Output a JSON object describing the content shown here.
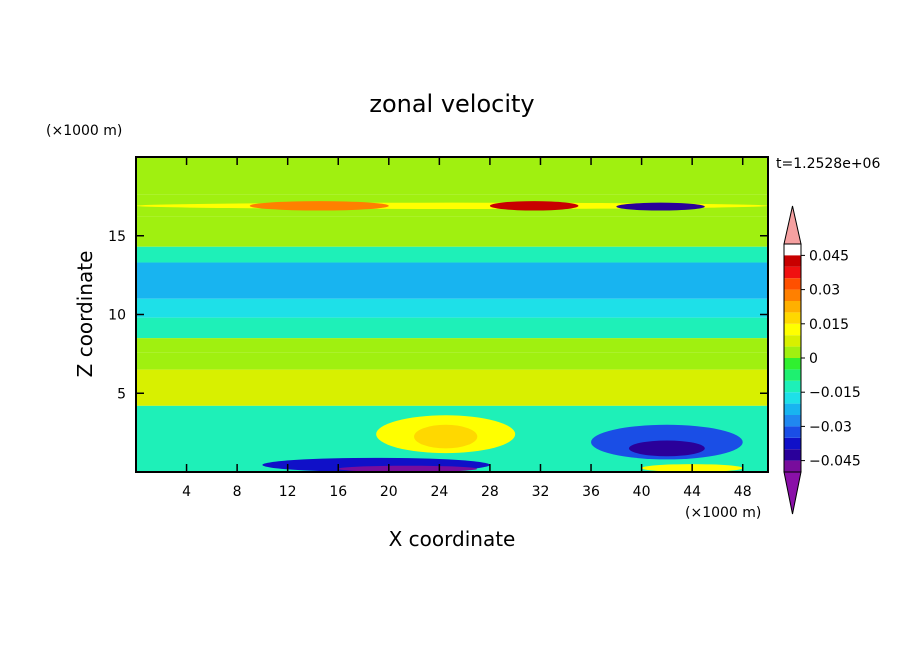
{
  "chart_data": {
    "type": "heatmap",
    "title": "zonal velocity",
    "xlabel": "X coordinate",
    "ylabel": "Z coordinate",
    "x_unit_label": "(×1000 m)",
    "y_unit_label": "(×1000 m)",
    "time_label": "t=1.2528e+06",
    "xlim": [
      0,
      50
    ],
    "ylim": [
      0,
      20
    ],
    "x_ticks": [
      "4",
      "8",
      "12",
      "16",
      "20",
      "24",
      "28",
      "32",
      "36",
      "40",
      "44",
      "48"
    ],
    "y_ticks": [
      "5",
      "10",
      "15"
    ],
    "colorbar": {
      "labels": [
        "0.045",
        "0.03",
        "0.015",
        "0",
        "−0.015",
        "−0.03",
        "−0.045"
      ],
      "label_values": [
        0.045,
        0.03,
        0.015,
        0,
        -0.015,
        -0.03,
        -0.045
      ],
      "min": -0.05,
      "max": 0.05,
      "step": 0.005,
      "over_color": "#f5a0a0",
      "under_color": "#8a10a8",
      "colors": [
        "#780d9c",
        "#2a009a",
        "#1010c8",
        "#1a4ee6",
        "#2088f0",
        "#18b4f0",
        "#1ee0e8",
        "#1ef0b8",
        "#1ef070",
        "#30f030",
        "#a0f010",
        "#d8f000",
        "#ffff00",
        "#ffd800",
        "#ffb000",
        "#ff8000",
        "#ff5000",
        "#f01010",
        "#c80000"
      ]
    },
    "field_bands": [
      {
        "z": [
          17.6,
          20
        ],
        "value": 0.002
      },
      {
        "z": [
          16.2,
          17.6
        ],
        "value": 0.003
      },
      {
        "z": [
          14.3,
          16.2
        ],
        "value": 0.001
      },
      {
        "z": [
          13.3,
          14.3
        ],
        "value": -0.013
      },
      {
        "z": [
          11.0,
          13.3
        ],
        "value": -0.024
      },
      {
        "z": [
          9.8,
          11.0
        ],
        "value": -0.019
      },
      {
        "z": [
          8.5,
          9.8
        ],
        "value": -0.011
      },
      {
        "z": [
          7.6,
          8.5
        ],
        "value": 0.0
      },
      {
        "z": [
          6.5,
          7.6
        ],
        "value": 0.002
      },
      {
        "z": [
          4.2,
          6.5
        ],
        "value": 0.006
      },
      {
        "z": [
          0,
          4.2
        ],
        "value": -0.011
      }
    ],
    "features": [
      {
        "x": [
          0,
          50
        ],
        "z": [
          16.7,
          17.1
        ],
        "value": 0.011,
        "name": "jet"
      },
      {
        "x": [
          28,
          35
        ],
        "z": [
          16.6,
          17.2
        ],
        "value": 0.048
      },
      {
        "x": [
          38,
          45
        ],
        "z": [
          16.6,
          17.1
        ],
        "value": -0.042
      },
      {
        "x": [
          9,
          20
        ],
        "z": [
          16.6,
          17.2
        ],
        "value": 0.028
      },
      {
        "x": [
          19,
          30
        ],
        "z": [
          1.2,
          3.6
        ],
        "value": 0.011
      },
      {
        "x": [
          22,
          27
        ],
        "z": [
          1.5,
          3.0
        ],
        "value": 0.016
      },
      {
        "x": [
          10,
          28
        ],
        "z": [
          0,
          0.9
        ],
        "value": -0.038
      },
      {
        "x": [
          16,
          27
        ],
        "z": [
          0,
          0.4
        ],
        "value": -0.049
      },
      {
        "x": [
          36,
          48
        ],
        "z": [
          0.8,
          3.0
        ],
        "value": -0.033
      },
      {
        "x": [
          39,
          45
        ],
        "z": [
          1.0,
          2.0
        ],
        "value": -0.042
      },
      {
        "x": [
          40,
          48
        ],
        "z": [
          0,
          0.5
        ],
        "value": 0.012
      }
    ]
  }
}
